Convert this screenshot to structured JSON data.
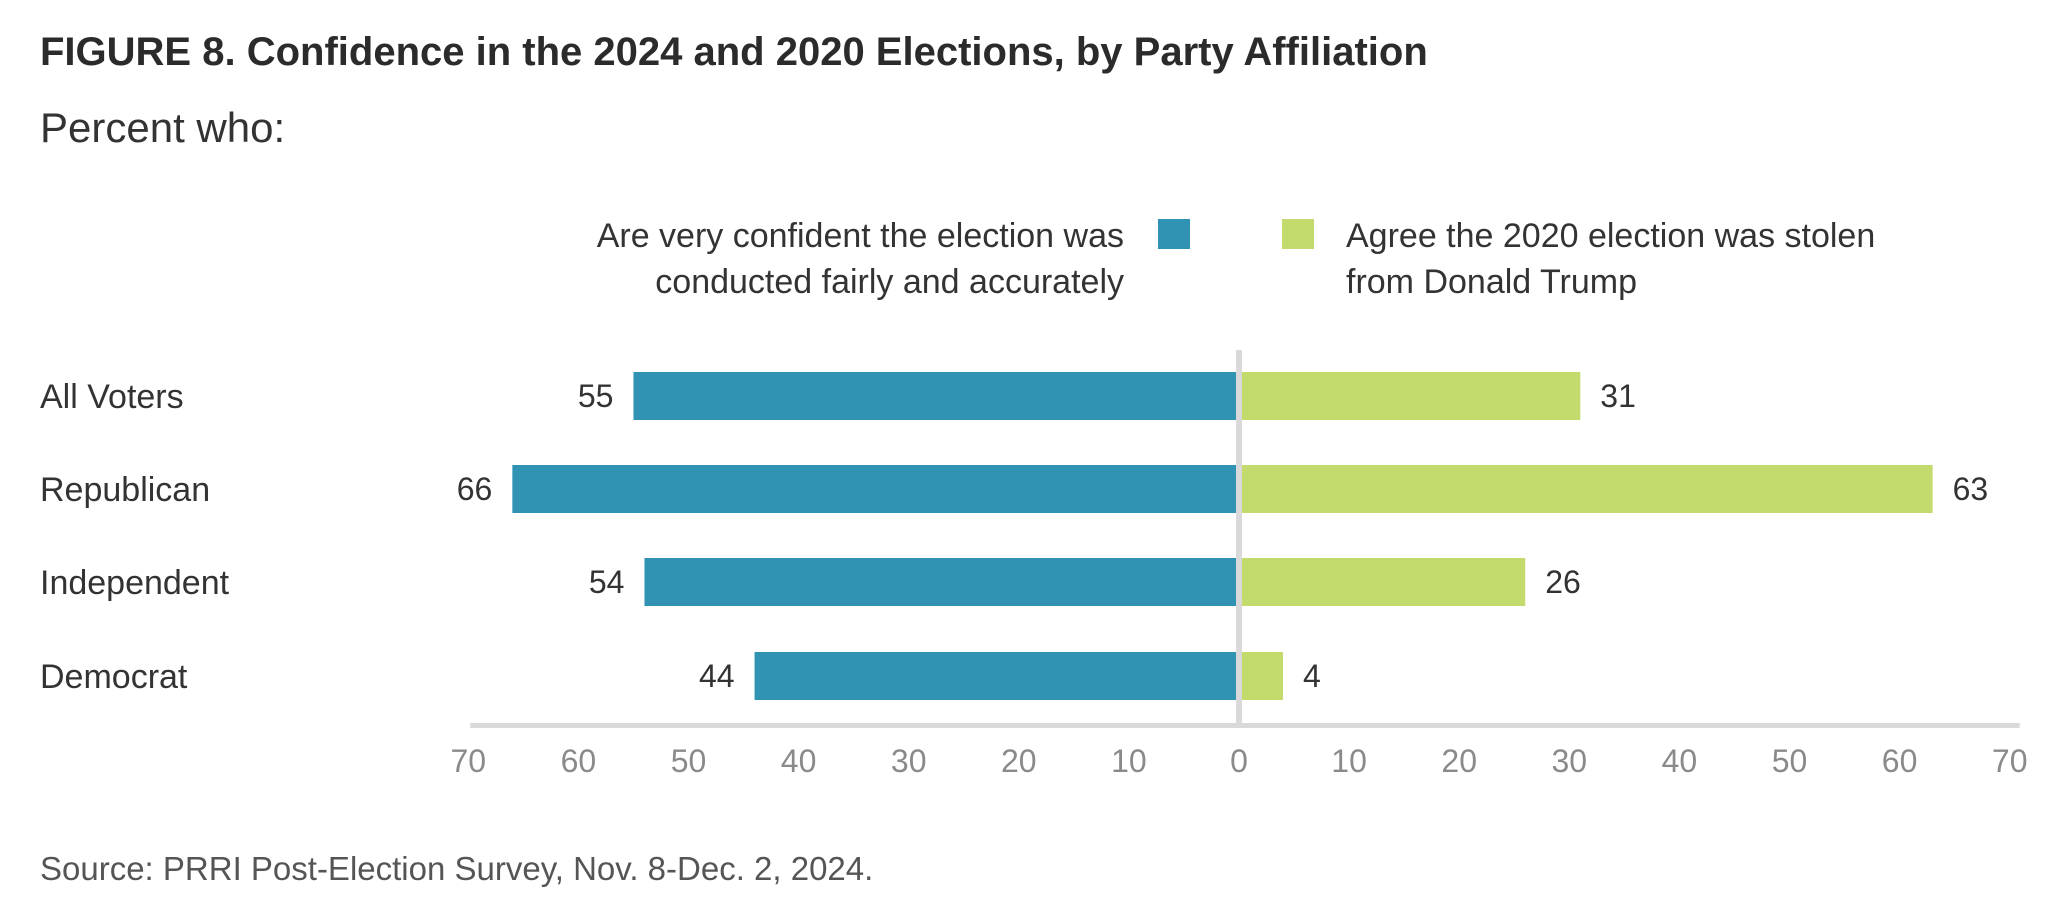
{
  "title": "FIGURE 8. Confidence in the 2024 and 2020 Elections, by Party Affiliation",
  "subtitle": "Percent who:",
  "source": "Source: PRRI Post-Election Survey, Nov. 8-Dec. 2, 2024.",
  "colors": {
    "left": "#3193b3",
    "right": "#c3da6d",
    "axis": "#d9d9d9",
    "tick": "#8a8a8a"
  },
  "chart_data": {
    "type": "bar",
    "orientation": "horizontal-diverging",
    "categories": [
      "All Voters",
      "Republican",
      "Independent",
      "Democrat"
    ],
    "series": [
      {
        "name": "Are very confident the election was conducted fairly and accurately",
        "name_lines": [
          "Are very confident the election was",
          "conducted fairly and accurately"
        ],
        "side": "left",
        "values": [
          55,
          66,
          54,
          44
        ]
      },
      {
        "name": "Agree the 2020 election was stolen from Donald Trump",
        "name_lines": [
          "Agree the 2020 election was stolen",
          "from Donald Trump"
        ],
        "side": "right",
        "values": [
          31,
          63,
          26,
          4
        ]
      }
    ],
    "xlim": [
      -70,
      70
    ],
    "x_ticks": [
      "70",
      "60",
      "50",
      "40",
      "30",
      "20",
      "10",
      "0",
      "10",
      "20",
      "30",
      "40",
      "50",
      "60",
      "70"
    ],
    "legend": "top",
    "grid": false
  }
}
